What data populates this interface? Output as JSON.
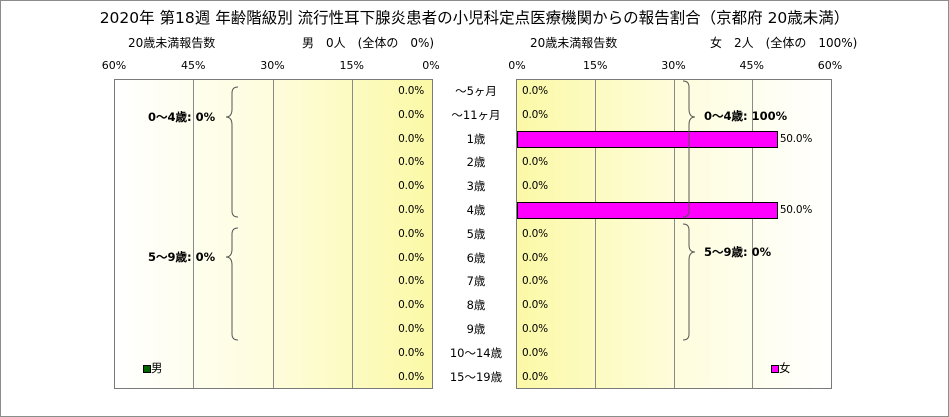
{
  "title": "2020年 第18週 年齢階級別 流行性耳下腺炎患者の小児科定点医療機関からの報告割合（京都府 20歳未満）",
  "male": {
    "axis_caption": "20歳未満報告数",
    "summary": "男　0人　(全体の　0%)",
    "legend": "男",
    "legend_color": "#006400",
    "group_0_4": "0～4歳: 0%",
    "group_5_9": "5～9歳: 0%"
  },
  "female": {
    "axis_caption": "20歳未満報告数",
    "summary": "女　2人　(全体の　100%)",
    "legend": "女",
    "legend_color": "#ff00ff",
    "group_0_4": "0～4歳: 100%",
    "group_5_9": "5～9歳: 0%"
  },
  "chart_data": {
    "type": "bar",
    "orientation": "horizontal-butterfly",
    "categories": [
      "～5ヶ月",
      "～11ヶ月",
      "1歳",
      "2歳",
      "3歳",
      "4歳",
      "5歳",
      "6歳",
      "7歳",
      "8歳",
      "9歳",
      "10～14歳",
      "15～19歳"
    ],
    "series": [
      {
        "name": "男",
        "values": [
          0,
          0,
          0,
          0,
          0,
          0,
          0,
          0,
          0,
          0,
          0,
          0,
          0
        ],
        "labels": [
          "0.0%",
          "0.0%",
          "0.0%",
          "0.0%",
          "0.0%",
          "0.0%",
          "0.0%",
          "0.0%",
          "0.0%",
          "0.0%",
          "0.0%",
          "0.0%",
          "0.0%"
        ]
      },
      {
        "name": "女",
        "values": [
          0,
          0,
          50,
          0,
          0,
          50,
          0,
          0,
          0,
          0,
          0,
          0,
          0
        ],
        "labels": [
          "0.0%",
          "0.0%",
          "50.0%",
          "0.0%",
          "0.0%",
          "50.0%",
          "0.0%",
          "0.0%",
          "0.0%",
          "0.0%",
          "0.0%",
          "0.0%",
          "0.0%"
        ]
      }
    ],
    "xlim": [
      0,
      60
    ],
    "ticks": [
      0,
      15,
      30,
      45,
      60
    ],
    "tick_labels": [
      "0%",
      "15%",
      "30%",
      "45%",
      "60%"
    ],
    "colors": {
      "male": "#006400",
      "female": "#ff00ff"
    }
  }
}
